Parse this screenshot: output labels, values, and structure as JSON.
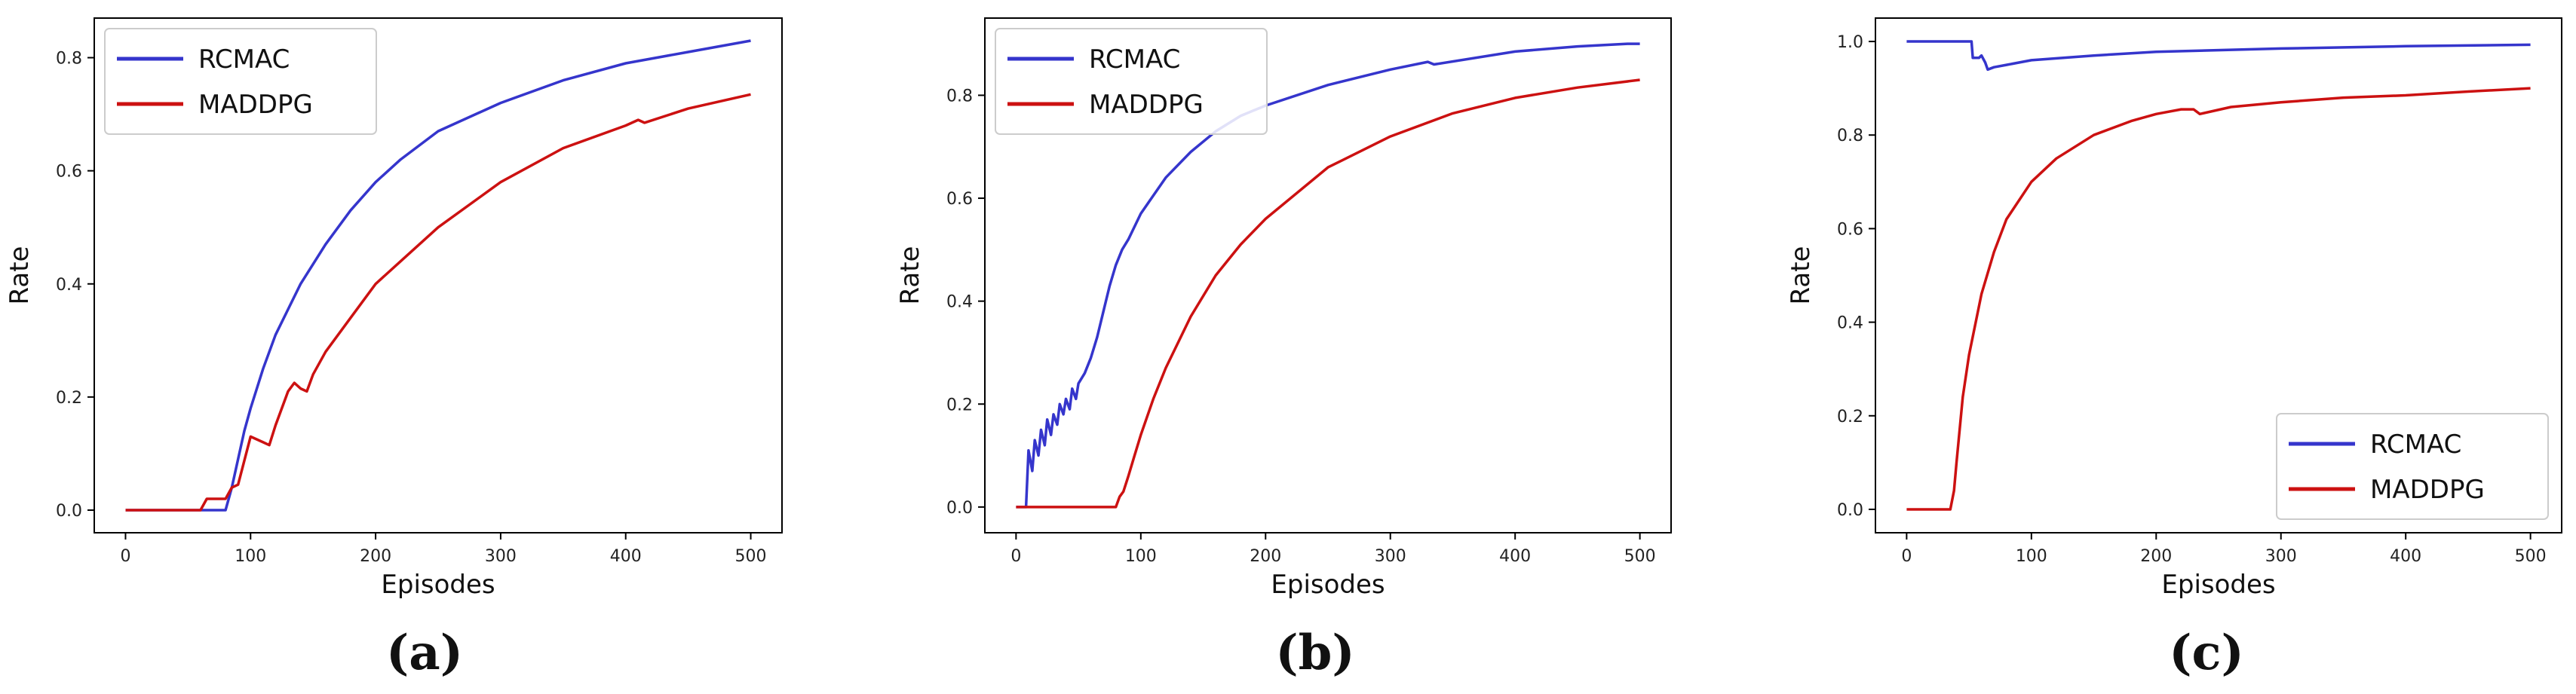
{
  "chart_data": [
    {
      "type": "line",
      "caption": "(a)",
      "xlabel": "Episodes",
      "ylabel": "Rate",
      "xlim": [
        -25,
        525
      ],
      "ylim": [
        -0.04,
        0.87
      ],
      "xticks": [
        0,
        100,
        200,
        300,
        400,
        500
      ],
      "yticks": [
        0.0,
        0.2,
        0.4,
        0.6,
        0.8
      ],
      "legend_loc": "upper-left",
      "series": [
        {
          "name": "RCMAC",
          "color": "#3535cc",
          "x": [
            0,
            20,
            40,
            60,
            80,
            85,
            90,
            95,
            100,
            110,
            120,
            140,
            160,
            180,
            200,
            220,
            250,
            300,
            350,
            400,
            450,
            500
          ],
          "y": [
            0,
            0,
            0,
            0,
            0,
            0.04,
            0.09,
            0.14,
            0.18,
            0.25,
            0.31,
            0.4,
            0.47,
            0.53,
            0.58,
            0.62,
            0.67,
            0.72,
            0.76,
            0.79,
            0.81,
            0.83
          ]
        },
        {
          "name": "MADDPG",
          "color": "#cc1111",
          "x": [
            0,
            30,
            60,
            65,
            70,
            75,
            80,
            85,
            90,
            100,
            110,
            115,
            120,
            130,
            135,
            140,
            145,
            150,
            160,
            180,
            200,
            220,
            250,
            300,
            350,
            400,
            410,
            415,
            450,
            500
          ],
          "y": [
            0,
            0,
            0,
            0.02,
            0.02,
            0.02,
            0.02,
            0.04,
            0.045,
            0.13,
            0.12,
            0.115,
            0.15,
            0.21,
            0.225,
            0.215,
            0.21,
            0.24,
            0.28,
            0.34,
            0.4,
            0.44,
            0.5,
            0.58,
            0.64,
            0.68,
            0.69,
            0.685,
            0.71,
            0.735
          ]
        }
      ]
    },
    {
      "type": "line",
      "caption": "(b)",
      "xlabel": "Episodes",
      "ylabel": "Rate",
      "xlim": [
        -25,
        525
      ],
      "ylim": [
        -0.05,
        0.95
      ],
      "xticks": [
        0,
        100,
        200,
        300,
        400,
        500
      ],
      "yticks": [
        0.0,
        0.2,
        0.4,
        0.6,
        0.8
      ],
      "legend_loc": "upper-left",
      "series": [
        {
          "name": "RCMAC",
          "color": "#3535cc",
          "x": [
            0,
            8,
            10,
            13,
            15,
            18,
            20,
            23,
            25,
            28,
            30,
            33,
            35,
            38,
            40,
            43,
            45,
            48,
            50,
            55,
            60,
            65,
            70,
            75,
            80,
            85,
            90,
            100,
            120,
            140,
            160,
            180,
            190,
            200,
            250,
            300,
            330,
            335,
            400,
            450,
            490,
            500
          ],
          "y": [
            0,
            0,
            0.11,
            0.07,
            0.13,
            0.1,
            0.15,
            0.12,
            0.17,
            0.14,
            0.18,
            0.16,
            0.2,
            0.18,
            0.21,
            0.19,
            0.23,
            0.21,
            0.24,
            0.26,
            0.29,
            0.33,
            0.38,
            0.43,
            0.47,
            0.5,
            0.52,
            0.57,
            0.64,
            0.69,
            0.73,
            0.76,
            0.77,
            0.78,
            0.82,
            0.85,
            0.865,
            0.86,
            0.885,
            0.895,
            0.9,
            0.9
          ]
        },
        {
          "name": "MADDPG",
          "color": "#cc1111",
          "x": [
            0,
            40,
            80,
            83,
            86,
            90,
            95,
            100,
            110,
            120,
            140,
            160,
            180,
            200,
            250,
            300,
            350,
            400,
            450,
            500
          ],
          "y": [
            0,
            0,
            0,
            0.02,
            0.03,
            0.06,
            0.1,
            0.14,
            0.21,
            0.27,
            0.37,
            0.45,
            0.51,
            0.56,
            0.66,
            0.72,
            0.765,
            0.795,
            0.815,
            0.83
          ]
        }
      ]
    },
    {
      "type": "line",
      "caption": "(c)",
      "xlabel": "Episodes",
      "ylabel": "Rate",
      "xlim": [
        -25,
        525
      ],
      "ylim": [
        -0.05,
        1.05
      ],
      "xticks": [
        0,
        100,
        200,
        300,
        400,
        500
      ],
      "yticks": [
        0.0,
        0.2,
        0.4,
        0.6,
        0.8,
        1.0
      ],
      "legend_loc": "lower-right",
      "series": [
        {
          "name": "RCMAC",
          "color": "#3535cc",
          "x": [
            0,
            20,
            40,
            52,
            53,
            58,
            60,
            63,
            65,
            70,
            80,
            100,
            150,
            200,
            300,
            400,
            500
          ],
          "y": [
            1.0,
            1.0,
            1.0,
            1.0,
            0.965,
            0.965,
            0.97,
            0.955,
            0.94,
            0.945,
            0.95,
            0.96,
            0.97,
            0.978,
            0.985,
            0.99,
            0.993
          ]
        },
        {
          "name": "MADDPG",
          "color": "#cc1111",
          "x": [
            0,
            20,
            35,
            38,
            40,
            45,
            50,
            60,
            70,
            80,
            100,
            120,
            150,
            180,
            200,
            220,
            230,
            235,
            260,
            300,
            350,
            400,
            450,
            500
          ],
          "y": [
            0,
            0,
            0,
            0.04,
            0.1,
            0.24,
            0.33,
            0.46,
            0.55,
            0.62,
            0.7,
            0.75,
            0.8,
            0.83,
            0.845,
            0.855,
            0.855,
            0.845,
            0.86,
            0.87,
            0.88,
            0.885,
            0.893,
            0.9
          ]
        }
      ]
    }
  ]
}
